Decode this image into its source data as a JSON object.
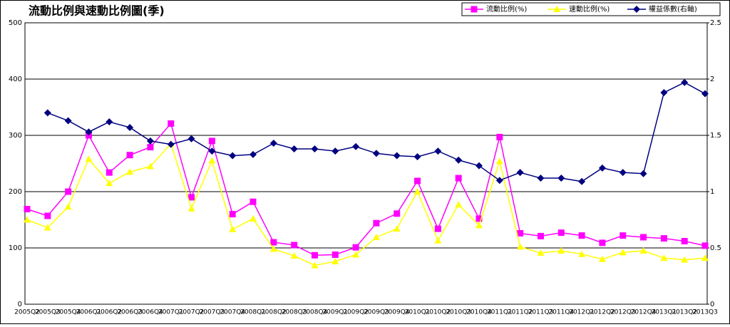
{
  "chart_data": {
    "type": "line",
    "title": "流動比例與速動比例圖(季)",
    "categories": [
      "2005Q2",
      "2005Q3",
      "2005Q4",
      "2006Q1",
      "2006Q2",
      "2006Q3",
      "2006Q4",
      "2007Q1",
      "2007Q2",
      "2007Q3",
      "2007Q4",
      "2008Q1",
      "2008Q2",
      "2008Q3",
      "2008Q4",
      "2009Q1",
      "2009Q2",
      "2009Q3",
      "2009Q4",
      "2010Q1",
      "2010Q2",
      "2010Q3",
      "2010Q4",
      "2011Q1",
      "2011Q2",
      "2011Q3",
      "2011Q4",
      "2012Q1",
      "2012Q2",
      "2012Q3",
      "2012Q4",
      "2013Q1",
      "2013Q2",
      "2013Q3"
    ],
    "series": [
      {
        "name": "流動比例(%)",
        "color": "#ff00ff",
        "marker": "square",
        "values": [
          169,
          157,
          200,
          300,
          234,
          265,
          279,
          321,
          190,
          290,
          160,
          182,
          110,
          105,
          87,
          88,
          101,
          144,
          161,
          219,
          134,
          224,
          152,
          297,
          126,
          121,
          127,
          122,
          109,
          122,
          119,
          117,
          112,
          104
        ]
      },
      {
        "name": "速動比例(%)",
        "color": "#ffff00",
        "marker": "triangle",
        "values": [
          150,
          136,
          173,
          258,
          215,
          235,
          245,
          285,
          170,
          255,
          133,
          152,
          98,
          86,
          69,
          76,
          88,
          119,
          134,
          200,
          113,
          177,
          140,
          254,
          102,
          91,
          95,
          89,
          80,
          92,
          95,
          82,
          79,
          82
        ]
      },
      {
        "name": "權益係數(右軸)",
        "color": "#000080",
        "marker": "diamond",
        "axis": "y2",
        "values": [
          null,
          1.7,
          1.63,
          1.53,
          1.62,
          1.57,
          1.45,
          1.42,
          1.47,
          1.36,
          1.32,
          1.33,
          1.43,
          1.38,
          1.38,
          1.36,
          1.4,
          1.34,
          1.32,
          1.31,
          1.36,
          1.28,
          1.23,
          1.1,
          1.17,
          1.12,
          1.12,
          1.09,
          1.21,
          1.17,
          1.16,
          1.88,
          1.97,
          1.87
        ]
      }
    ],
    "ylim": [
      0,
      500
    ],
    "yticks": [
      0,
      100,
      200,
      300,
      400,
      500
    ],
    "y2lim": [
      0,
      2.5
    ],
    "y2ticks": [
      0,
      0.5,
      1,
      1.5,
      2,
      2.5
    ],
    "grid": true,
    "legend": "top-right"
  }
}
